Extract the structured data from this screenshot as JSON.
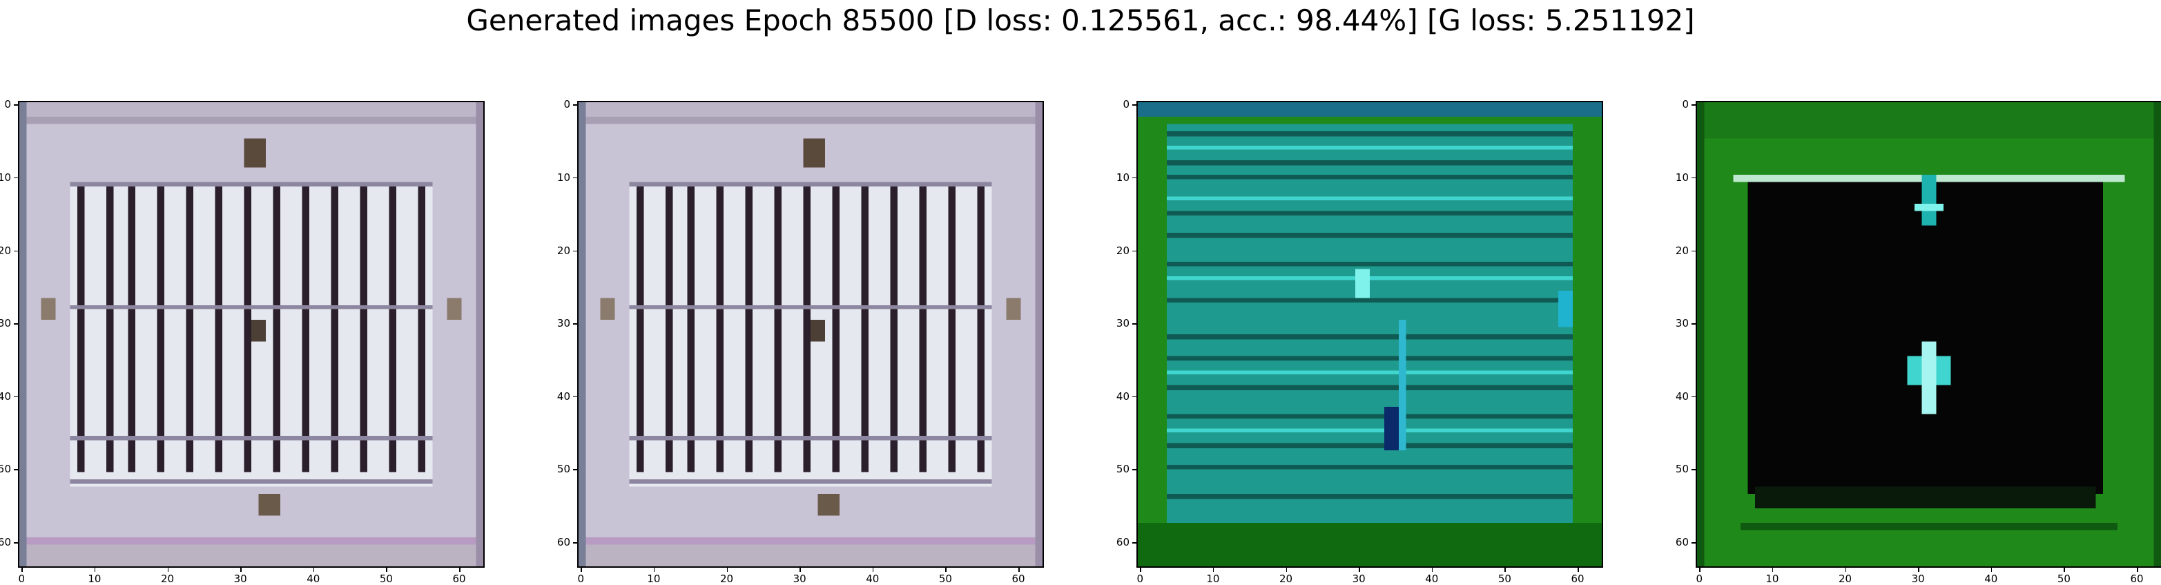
{
  "figure": {
    "title": "Generated images Epoch 85500 [D loss: 0.125561, acc.: 98.44%] [G loss: 5.251192]"
  },
  "ticks": {
    "y": [
      "0",
      "10",
      "20",
      "30",
      "40",
      "50",
      "60"
    ],
    "x": [
      "0",
      "10",
      "20",
      "30",
      "40",
      "50",
      "60"
    ]
  },
  "panels": [
    {
      "id": "panel-1",
      "content": "grayish-lilac grid with dark vertical stripes"
    },
    {
      "id": "panel-2",
      "content": "grayish-lilac grid with dark vertical stripes"
    },
    {
      "id": "panel-3",
      "content": "green border with cyan horizontal stripes"
    },
    {
      "id": "panel-4",
      "content": "green border with black center and cyan glyphs"
    }
  ],
  "colors": {
    "lilac": "#c9c3d6",
    "stripe": "#2a1f2a",
    "green": "#1f8a1a",
    "cyan": "#1fb3b0",
    "black": "#050505"
  }
}
